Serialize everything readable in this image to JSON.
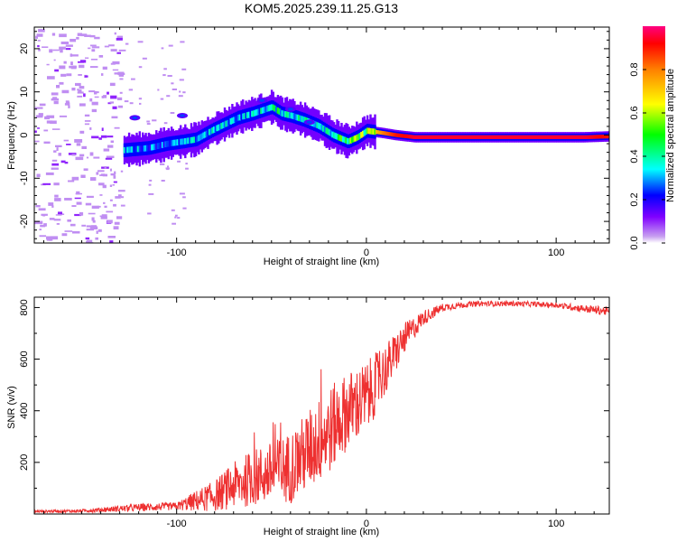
{
  "title": "KOM5.2025.239.11.25.G13",
  "colors": {
    "frame": "#000000",
    "snr_line": "#ee3030",
    "speckle": "#c8a0f0",
    "background": "#ffffff"
  },
  "chart_data": [
    {
      "type": "heatmap",
      "name": "spectrogram",
      "xlabel": "Height of straight line (km)",
      "ylabel": "Frequency (Hz)",
      "xlim": [
        -175,
        128
      ],
      "ylim": [
        -25,
        25
      ],
      "xticks": [
        -100,
        0,
        100
      ],
      "xtick_labels": [
        "-100",
        "0",
        "100"
      ],
      "yticks": [
        -20,
        -10,
        0,
        10,
        20
      ],
      "ytick_labels": [
        "-20",
        "-10",
        "0",
        "10",
        "20"
      ],
      "colorbar": {
        "label": "Normalized spectral amplitude",
        "range": [
          0,
          1
        ],
        "ticks": [
          0,
          0.2,
          0.4,
          0.6,
          0.8
        ],
        "tick_labels": [
          "0.0",
          "0.2",
          "0.4",
          "0.6",
          "0.8"
        ]
      },
      "ridge": {
        "description": "dominant frequency track vs height",
        "x": [
          -128,
          -115,
          -105,
          -97,
          -90,
          -82,
          -75,
          -68,
          -60,
          -50,
          -45,
          -40,
          -33,
          -25,
          -18,
          -10,
          -5,
          0,
          8,
          15,
          25,
          40,
          60,
          80,
          100,
          115,
          128
        ],
        "frequency": [
          -3.5,
          -3,
          -2,
          -1.5,
          -1,
          1,
          2.5,
          4,
          5,
          6.5,
          5,
          4.5,
          3.5,
          2,
          0,
          -1.5,
          -0.5,
          1,
          0.5,
          0,
          -0.5,
          -0.5,
          -0.5,
          -0.5,
          -0.5,
          -0.5,
          -0.3
        ],
        "amplitude": [
          0.35,
          0.3,
          0.3,
          0.3,
          0.35,
          0.35,
          0.35,
          0.35,
          0.35,
          0.4,
          0.45,
          0.4,
          0.4,
          0.45,
          0.45,
          0.5,
          0.55,
          0.6,
          0.8,
          0.9,
          0.95,
          0.95,
          0.95,
          0.95,
          0.95,
          0.95,
          0.9
        ]
      },
      "noise_region": {
        "xmin": -175,
        "xmax": -130,
        "amplitude": 0.05
      }
    },
    {
      "type": "line",
      "name": "snr",
      "xlabel": "Height of straight line (km)",
      "ylabel": "SNR (v/v)",
      "xlim": [
        -175,
        128
      ],
      "ylim": [
        0,
        840
      ],
      "xticks": [
        -100,
        0,
        100
      ],
      "xtick_labels": [
        "-100",
        "0",
        "100"
      ],
      "yticks": [
        200,
        400,
        600,
        800
      ],
      "ytick_labels": [
        "200",
        "400",
        "600",
        "800"
      ],
      "envelope": {
        "x": [
          -175,
          -150,
          -120,
          -100,
          -90,
          -80,
          -70,
          -60,
          -50,
          -40,
          -30,
          -20,
          -10,
          0,
          10,
          20,
          30,
          40,
          50,
          60,
          80,
          100,
          115,
          128
        ],
        "mean": [
          10,
          12,
          25,
          30,
          50,
          70,
          110,
          140,
          160,
          180,
          250,
          320,
          400,
          450,
          560,
          680,
          760,
          800,
          810,
          815,
          815,
          810,
          795,
          785
        ],
        "spread": [
          5,
          6,
          15,
          15,
          40,
          60,
          90,
          110,
          120,
          140,
          160,
          170,
          150,
          140,
          100,
          60,
          30,
          15,
          12,
          10,
          10,
          10,
          15,
          18
        ]
      }
    }
  ]
}
